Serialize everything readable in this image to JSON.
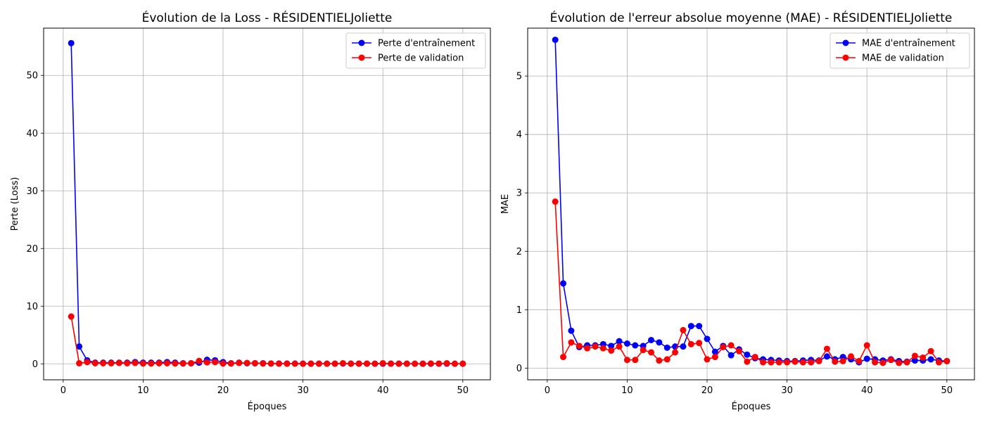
{
  "chart_data": [
    {
      "type": "line",
      "title": "Évolution de la Loss - RÉSIDENTIELJoliette",
      "xlabel": "Époques",
      "ylabel": "Perte (Loss)",
      "xlim": [
        -2.45,
        53.45
      ],
      "ylim": [
        -2.77,
        58.2
      ],
      "xticks": [
        0,
        10,
        20,
        30,
        40,
        50
      ],
      "yticks": [
        0,
        10,
        20,
        30,
        40,
        50
      ],
      "grid": true,
      "legend_position": "top-right",
      "x": [
        1,
        2,
        3,
        4,
        5,
        6,
        7,
        8,
        9,
        10,
        11,
        12,
        13,
        14,
        15,
        16,
        17,
        18,
        19,
        20,
        21,
        22,
        23,
        24,
        25,
        26,
        27,
        28,
        29,
        30,
        31,
        32,
        33,
        34,
        35,
        36,
        37,
        38,
        39,
        40,
        41,
        42,
        43,
        44,
        45,
        46,
        47,
        48,
        49,
        50
      ],
      "series": [
        {
          "name": "Perte d'entraînement",
          "color": "#0000ff",
          "values": [
            55.6,
            3.0,
            0.6,
            0.2,
            0.2,
            0.2,
            0.2,
            0.2,
            0.3,
            0.2,
            0.2,
            0.2,
            0.3,
            0.2,
            0.1,
            0.1,
            0.2,
            0.7,
            0.6,
            0.3,
            0.1,
            0.2,
            0.1,
            0.1,
            0.1,
            0.05,
            0.05,
            0.05,
            0.05,
            0.03,
            0.03,
            0.03,
            0.03,
            0.03,
            0.05,
            0.03,
            0.04,
            0.03,
            0.02,
            0.03,
            0.03,
            0.03,
            0.03,
            0.02,
            0.02,
            0.02,
            0.02,
            0.03,
            0.02,
            0.02
          ]
        },
        {
          "name": "Perte de validation",
          "color": "#ff0000",
          "values": [
            8.2,
            0.1,
            0.3,
            0.1,
            0.1,
            0.1,
            0.15,
            0.1,
            0.15,
            0.05,
            0.05,
            0.1,
            0.1,
            0.05,
            0.05,
            0.1,
            0.5,
            0.25,
            0.3,
            0.05,
            0.05,
            0.15,
            0.15,
            0.1,
            0.05,
            0.05,
            0.02,
            0.02,
            0.02,
            0.02,
            0.02,
            0.02,
            0.02,
            0.02,
            0.1,
            0.02,
            0.02,
            0.04,
            0.02,
            0.1,
            0.02,
            0.02,
            0.02,
            0.02,
            0.02,
            0.05,
            0.04,
            0.1,
            0.02,
            0.02
          ]
        }
      ]
    },
    {
      "type": "line",
      "title": "Évolution de l'erreur absolue moyenne (MAE) - RÉSIDENTIELJoliette",
      "xlabel": "Époques",
      "ylabel": "MAE",
      "xlim": [
        -2.45,
        53.45
      ],
      "ylim": [
        -0.2,
        5.82
      ],
      "xticks": [
        0,
        10,
        20,
        30,
        40,
        50
      ],
      "yticks": [
        0,
        1,
        2,
        3,
        4,
        5
      ],
      "grid": true,
      "legend_position": "top-right",
      "x": [
        1,
        2,
        3,
        4,
        5,
        6,
        7,
        8,
        9,
        10,
        11,
        12,
        13,
        14,
        15,
        16,
        17,
        18,
        19,
        20,
        21,
        22,
        23,
        24,
        25,
        26,
        27,
        28,
        29,
        30,
        31,
        32,
        33,
        34,
        35,
        36,
        37,
        38,
        39,
        40,
        41,
        42,
        43,
        44,
        45,
        46,
        47,
        48,
        49,
        50
      ],
      "series": [
        {
          "name": "MAE d'entraînement",
          "color": "#0000ff",
          "values": [
            5.62,
            1.45,
            0.64,
            0.36,
            0.39,
            0.39,
            0.41,
            0.38,
            0.46,
            0.42,
            0.39,
            0.38,
            0.48,
            0.44,
            0.35,
            0.37,
            0.37,
            0.72,
            0.72,
            0.5,
            0.28,
            0.38,
            0.22,
            0.32,
            0.23,
            0.17,
            0.15,
            0.14,
            0.13,
            0.12,
            0.12,
            0.13,
            0.14,
            0.13,
            0.2,
            0.15,
            0.19,
            0.15,
            0.1,
            0.16,
            0.15,
            0.13,
            0.15,
            0.12,
            0.11,
            0.13,
            0.13,
            0.15,
            0.13,
            0.12
          ]
        },
        {
          "name": "MAE de validation",
          "color": "#ff0000",
          "values": [
            2.85,
            0.19,
            0.44,
            0.38,
            0.34,
            0.37,
            0.34,
            0.3,
            0.37,
            0.14,
            0.14,
            0.31,
            0.27,
            0.13,
            0.15,
            0.27,
            0.65,
            0.41,
            0.43,
            0.15,
            0.19,
            0.36,
            0.39,
            0.29,
            0.11,
            0.19,
            0.1,
            0.1,
            0.1,
            0.1,
            0.11,
            0.1,
            0.1,
            0.12,
            0.33,
            0.11,
            0.12,
            0.2,
            0.12,
            0.39,
            0.1,
            0.09,
            0.14,
            0.09,
            0.1,
            0.21,
            0.18,
            0.29,
            0.1,
            0.12
          ]
        }
      ]
    }
  ]
}
